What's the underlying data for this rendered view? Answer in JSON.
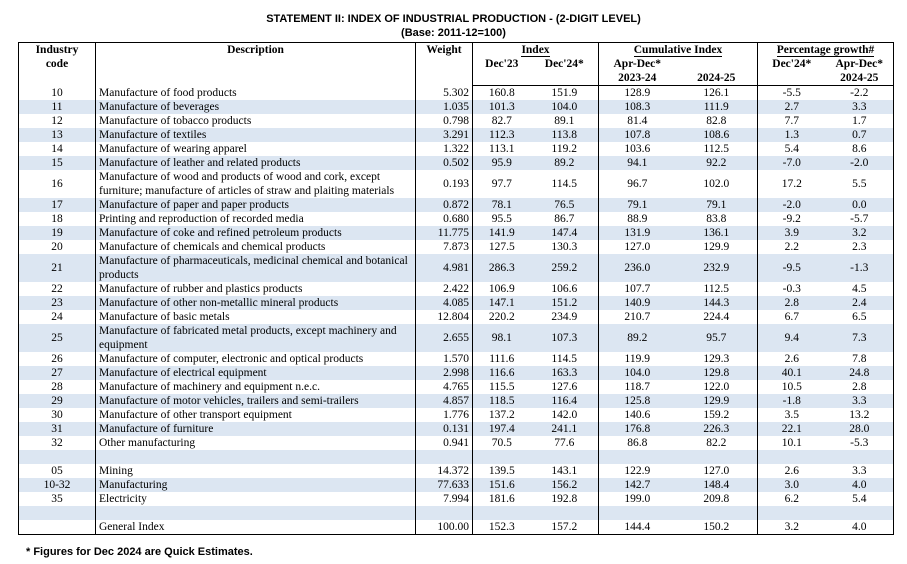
{
  "header": {
    "title": "STATEMENT II:  INDEX OF INDUSTRIAL PRODUCTION - (2-DIGIT LEVEL)",
    "subtitle": "(Base: 2011-12=100)"
  },
  "table": {
    "columns": {
      "code": "Industry code",
      "description": "Description",
      "weight": "Weight",
      "index": "Index",
      "dec23": "Dec'23",
      "dec24": "Dec'24*",
      "cumulative": "Cumulative Index",
      "cum_period": "Apr-Dec*",
      "cum_2324": "2023-24",
      "cum_2425": "2024-25",
      "growth": "Percentage growth#",
      "growth_dec24": "Dec'24*",
      "growth_period": "Apr-Dec*",
      "growth_2425": "2024-25"
    },
    "rows": [
      [
        "10",
        "Manufacture of food products",
        "5.302",
        "160.8",
        "151.9",
        "128.9",
        "126.1",
        "-5.5",
        "-2.2"
      ],
      [
        "11",
        "Manufacture of beverages",
        "1.035",
        "101.3",
        "104.0",
        "108.3",
        "111.9",
        "2.7",
        "3.3"
      ],
      [
        "12",
        "Manufacture of tobacco products",
        "0.798",
        "82.7",
        "89.1",
        "81.4",
        "82.8",
        "7.7",
        "1.7"
      ],
      [
        "13",
        "Manufacture of textiles",
        "3.291",
        "112.3",
        "113.8",
        "107.8",
        "108.6",
        "1.3",
        "0.7"
      ],
      [
        "14",
        "Manufacture of wearing apparel",
        "1.322",
        "113.1",
        "119.2",
        "103.6",
        "112.5",
        "5.4",
        "8.6"
      ],
      [
        "15",
        "Manufacture of leather and related products",
        "0.502",
        "95.9",
        "89.2",
        "94.1",
        "92.2",
        "-7.0",
        "-2.0"
      ],
      [
        "16",
        "Manufacture of wood and products of wood and cork, except furniture; manufacture of articles of straw and plaiting materials",
        "0.193",
        "97.7",
        "114.5",
        "96.7",
        "102.0",
        "17.2",
        "5.5"
      ],
      [
        "17",
        "Manufacture of paper and paper products",
        "0.872",
        "78.1",
        "76.5",
        "79.1",
        "79.1",
        "-2.0",
        "0.0"
      ],
      [
        "18",
        "Printing and reproduction of recorded media",
        "0.680",
        "95.5",
        "86.7",
        "88.9",
        "83.8",
        "-9.2",
        "-5.7"
      ],
      [
        "19",
        "Manufacture of coke and refined petroleum products",
        "11.775",
        "141.9",
        "147.4",
        "131.9",
        "136.1",
        "3.9",
        "3.2"
      ],
      [
        "20",
        "Manufacture of chemicals and chemical products",
        "7.873",
        "127.5",
        "130.3",
        "127.0",
        "129.9",
        "2.2",
        "2.3"
      ],
      [
        "21",
        "Manufacture of pharmaceuticals, medicinal chemical and botanical products",
        "4.981",
        "286.3",
        "259.2",
        "236.0",
        "232.9",
        "-9.5",
        "-1.3"
      ],
      [
        "22",
        "Manufacture of rubber and plastics products",
        "2.422",
        "106.9",
        "106.6",
        "107.7",
        "112.5",
        "-0.3",
        "4.5"
      ],
      [
        "23",
        "Manufacture of other non-metallic mineral products",
        "4.085",
        "147.1",
        "151.2",
        "140.9",
        "144.3",
        "2.8",
        "2.4"
      ],
      [
        "24",
        "Manufacture of basic metals",
        "12.804",
        "220.2",
        "234.9",
        "210.7",
        "224.4",
        "6.7",
        "6.5"
      ],
      [
        "25",
        "Manufacture of fabricated metal products, except machinery and equipment",
        "2.655",
        "98.1",
        "107.3",
        "89.2",
        "95.7",
        "9.4",
        "7.3"
      ],
      [
        "26",
        "Manufacture of computer, electronic and optical products",
        "1.570",
        "111.6",
        "114.5",
        "119.9",
        "129.3",
        "2.6",
        "7.8"
      ],
      [
        "27",
        "Manufacture of electrical equipment",
        "2.998",
        "116.6",
        "163.3",
        "104.0",
        "129.8",
        "40.1",
        "24.8"
      ],
      [
        "28",
        "Manufacture of machinery and equipment n.e.c.",
        "4.765",
        "115.5",
        "127.6",
        "118.7",
        "122.0",
        "10.5",
        "2.8"
      ],
      [
        "29",
        "Manufacture of motor vehicles, trailers and semi-trailers",
        "4.857",
        "118.5",
        "116.4",
        "125.8",
        "129.9",
        "-1.8",
        "3.3"
      ],
      [
        "30",
        "Manufacture of other transport equipment",
        "1.776",
        "137.2",
        "142.0",
        "140.6",
        "159.2",
        "3.5",
        "13.2"
      ],
      [
        "31",
        "Manufacture of furniture",
        "0.131",
        "197.4",
        "241.1",
        "176.8",
        "226.3",
        "22.1",
        "28.0"
      ],
      [
        "32",
        "Other manufacturing",
        "0.941",
        "70.5",
        "77.6",
        "86.8",
        "82.2",
        "10.1",
        "-5.3"
      ],
      null,
      [
        "05",
        "Mining",
        "14.372",
        "139.5",
        "143.1",
        "122.9",
        "127.0",
        "2.6",
        "3.3"
      ],
      [
        "10-32",
        "Manufacturing",
        "77.633",
        "151.6",
        "156.2",
        "142.7",
        "148.4",
        "3.0",
        "4.0"
      ],
      [
        "35",
        "Electricity",
        "7.994",
        "181.6",
        "192.8",
        "199.0",
        "209.8",
        "6.2",
        "5.4"
      ],
      null,
      [
        null,
        "General Index",
        "100.00",
        "152.3",
        "157.2",
        "144.4",
        "150.2",
        "3.2",
        "4.0"
      ]
    ]
  },
  "footnote": "* Figures for Dec 2024 are Quick Estimates."
}
